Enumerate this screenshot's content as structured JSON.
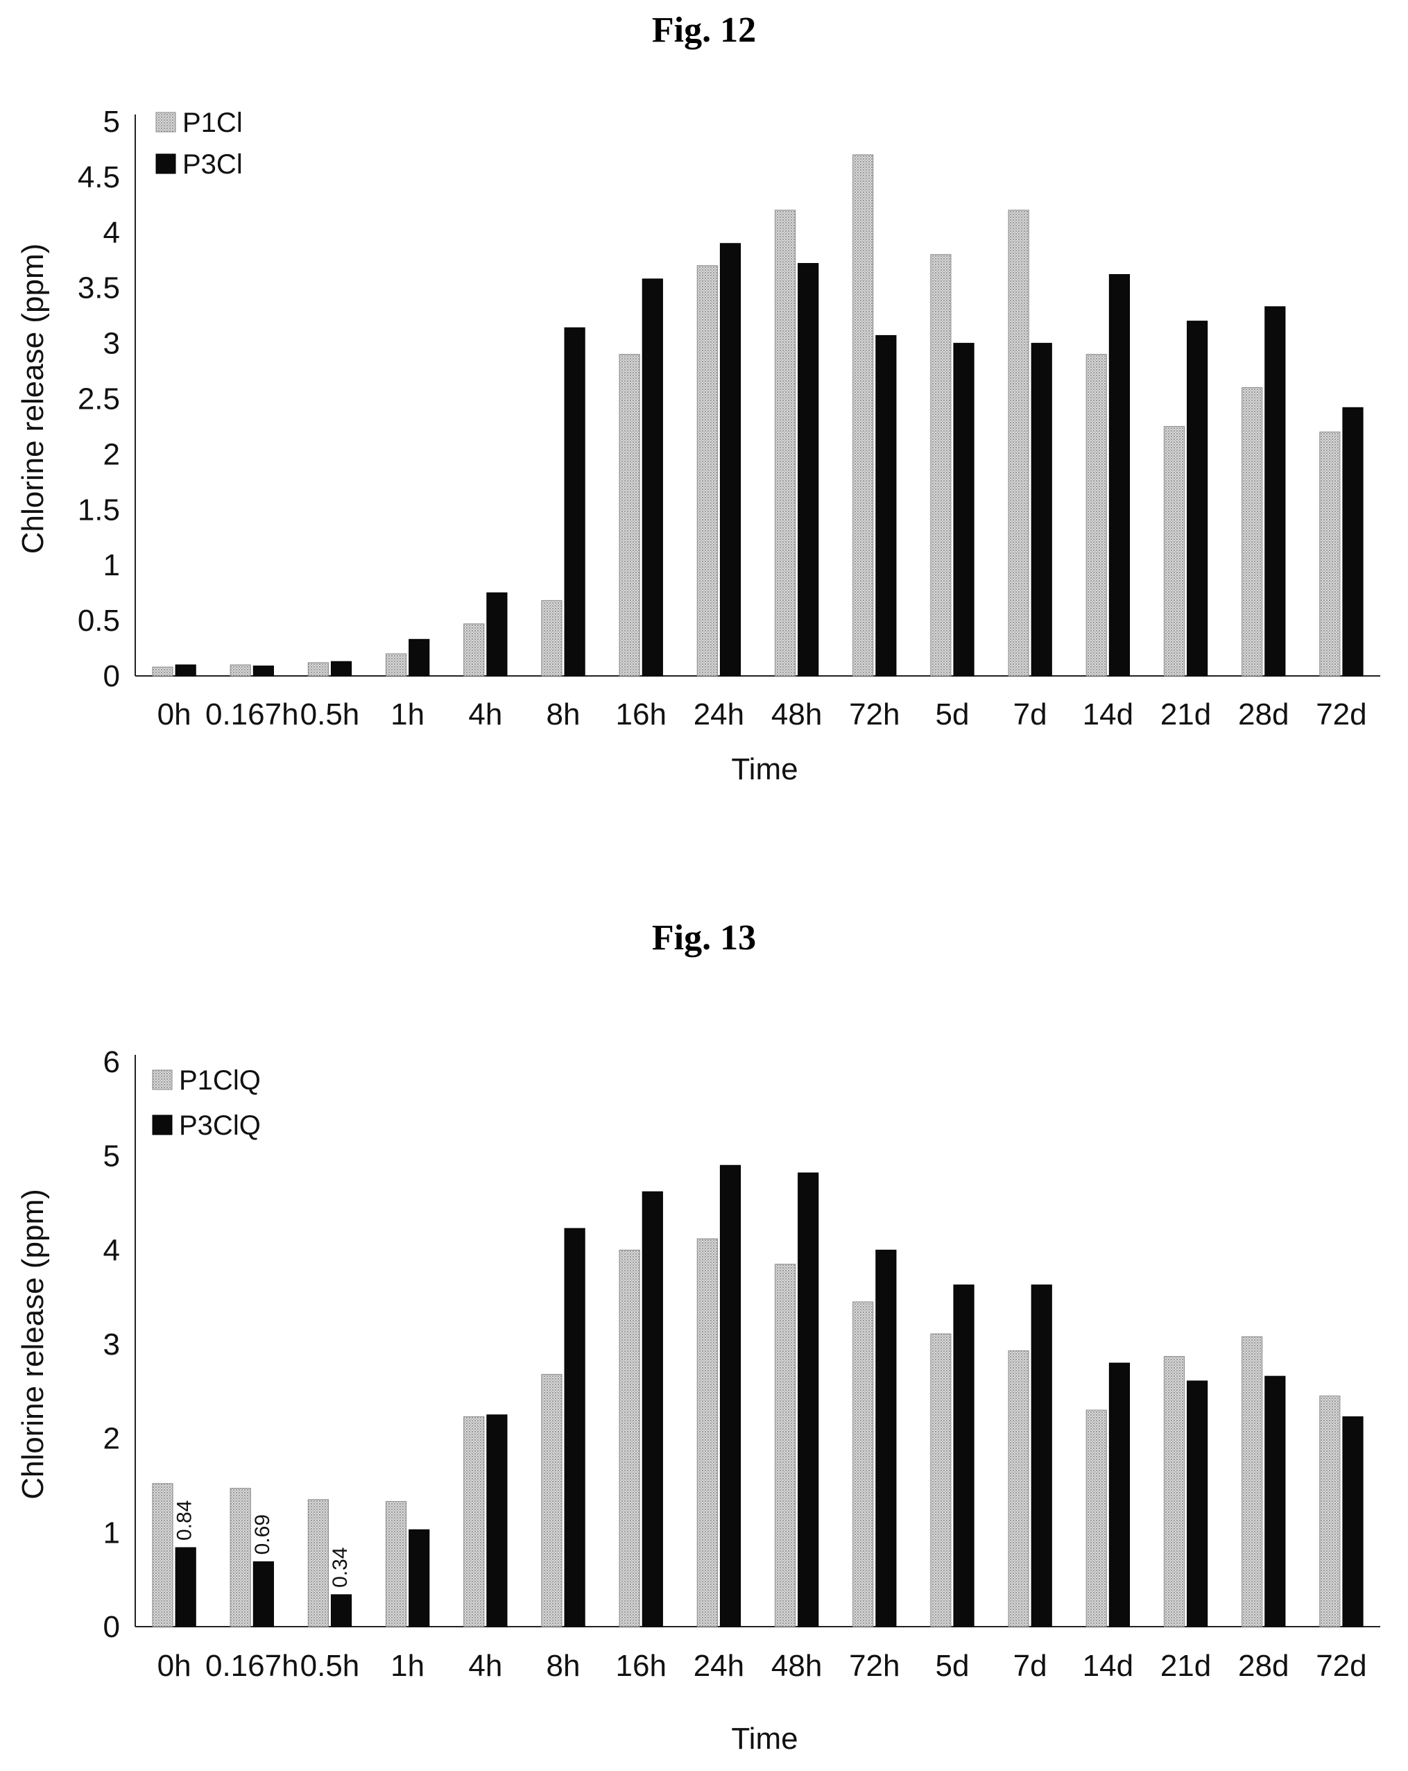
{
  "charts": [
    {
      "figure_label": "Fig. 12",
      "chart_data": {
        "type": "bar",
        "title": "Fig. 12",
        "xlabel": "Time",
        "ylabel": "Chlorine release (ppm)",
        "ylim": [
          0,
          5
        ],
        "yticks": [
          "0",
          "0.5",
          "1",
          "1.5",
          "2",
          "2.5",
          "3",
          "3.5",
          "4",
          "4.5",
          "5"
        ],
        "categories": [
          "0h",
          "0.167h",
          "0.5h",
          "1h",
          "4h",
          "8h",
          "16h",
          "24h",
          "48h",
          "72h",
          "5d",
          "7d",
          "14d",
          "21d",
          "28d",
          "72d"
        ],
        "series": [
          {
            "name": "P1Cl",
            "color": "#d8d8d8",
            "values": [
              0.08,
              0.1,
              0.12,
              0.2,
              0.47,
              0.68,
              2.9,
              3.7,
              4.2,
              4.7,
              3.8,
              4.2,
              2.9,
              2.25,
              2.6,
              2.2
            ]
          },
          {
            "name": "P3Cl",
            "color": "#0a0a0a",
            "values": [
              0.1,
              0.09,
              0.13,
              0.33,
              0.75,
              3.14,
              3.58,
              3.9,
              3.72,
              3.07,
              3.0,
              3.0,
              3.62,
              3.2,
              3.33,
              2.42
            ]
          }
        ],
        "data_labels": [],
        "legend": "top-left",
        "grid": false
      }
    },
    {
      "figure_label": "Fig. 13",
      "chart_data": {
        "type": "bar",
        "title": "Fig. 13",
        "xlabel": "Time",
        "ylabel": "Chlorine release (ppm)",
        "ylim": [
          0,
          6
        ],
        "yticks": [
          "0",
          "1",
          "2",
          "3",
          "4",
          "5",
          "6"
        ],
        "categories": [
          "0h",
          "0.167h",
          "0.5h",
          "1h",
          "4h",
          "8h",
          "16h",
          "24h",
          "48h",
          "72h",
          "5d",
          "7d",
          "14d",
          "21d",
          "28d",
          "72d"
        ],
        "series": [
          {
            "name": "P1ClQ",
            "color": "#d8d8d8",
            "values": [
              1.52,
              1.47,
              1.35,
              1.33,
              2.23,
              2.68,
              4.0,
              4.12,
              3.85,
              3.45,
              3.11,
              2.93,
              2.3,
              2.87,
              3.08,
              2.45
            ]
          },
          {
            "name": "P3ClQ",
            "color": "#0a0a0a",
            "values": [
              0.84,
              0.69,
              0.34,
              1.03,
              2.25,
              4.23,
              4.62,
              4.9,
              4.82,
              4.0,
              3.63,
              3.63,
              2.8,
              2.61,
              2.66,
              2.23
            ]
          }
        ],
        "data_labels": [
          {
            "category_index": 0,
            "series_index": 1,
            "text": "0.84"
          },
          {
            "category_index": 1,
            "series_index": 1,
            "text": "0.69"
          },
          {
            "category_index": 2,
            "series_index": 1,
            "text": "0.34"
          }
        ],
        "legend": "top-left",
        "grid": false
      }
    }
  ]
}
